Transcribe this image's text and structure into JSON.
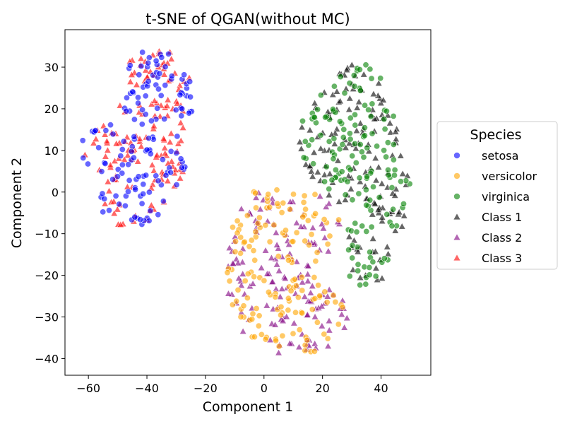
{
  "chart_data": {
    "type": "scatter",
    "title": "t-SNE of QGAN(without MC)",
    "xlabel": "Component 1",
    "ylabel": "Component 2",
    "xlim": [
      -68,
      57
    ],
    "ylim": [
      -44,
      39
    ],
    "xticks": [
      -60,
      -40,
      -20,
      0,
      20,
      40
    ],
    "yticks": [
      -40,
      -30,
      -20,
      -10,
      0,
      10,
      20,
      30
    ],
    "grid": false,
    "legend": {
      "title": "Species",
      "placement": "right outside",
      "entries": [
        {
          "label": "setosa",
          "marker": "circle",
          "color": "#0000ff"
        },
        {
          "label": "versicolor",
          "marker": "circle",
          "color": "#ffa500"
        },
        {
          "label": "virginica",
          "marker": "circle",
          "color": "#008000"
        },
        {
          "label": "Class 1",
          "marker": "triangle",
          "color": "#000000"
        },
        {
          "label": "Class 2",
          "marker": "triangle",
          "color": "#800080"
        },
        {
          "label": "Class 3",
          "marker": "triangle",
          "color": "#ff0000"
        }
      ]
    },
    "clusters": [
      {
        "label": "setosa",
        "marker": "circle",
        "color": "#0000ff",
        "region": {
          "x": [
            -62,
            -24
          ],
          "y": [
            -8,
            35
          ]
        },
        "approx_count": 150
      },
      {
        "label": "Class 3",
        "marker": "triangle",
        "color": "#ff0000",
        "region": {
          "x": [
            -63,
            -20
          ],
          "y": [
            -8,
            34
          ]
        },
        "approx_count": 150
      },
      {
        "label": "versicolor",
        "marker": "circle",
        "color": "#ffa500",
        "region": {
          "x": [
            -16,
            30
          ],
          "y": [
            -40,
            2
          ]
        },
        "approx_count": 150
      },
      {
        "label": "Class 2",
        "marker": "triangle",
        "color": "#800080",
        "region": {
          "x": [
            -16,
            30
          ],
          "y": [
            -40,
            2
          ]
        },
        "approx_count": 150
      },
      {
        "label": "virginica",
        "marker": "circle",
        "color": "#008000",
        "region": {
          "x": [
            6,
            51
          ],
          "y": [
            -23,
            31
          ]
        },
        "approx_count": 150
      },
      {
        "label": "Class 1",
        "marker": "triangle",
        "color": "#000000",
        "region": {
          "x": [
            6,
            50
          ],
          "y": [
            -23,
            31
          ]
        },
        "approx_count": 150
      }
    ]
  }
}
